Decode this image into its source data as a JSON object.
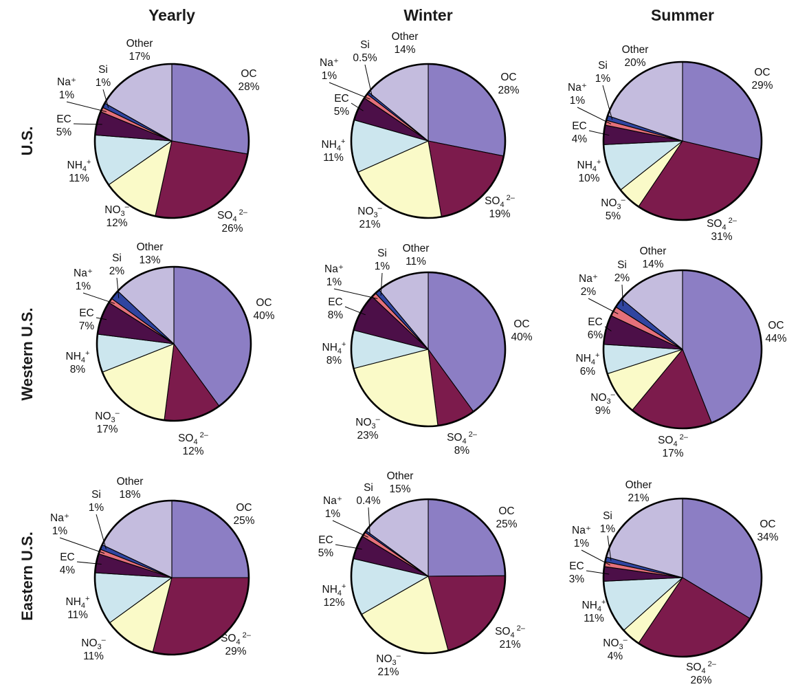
{
  "column_titles": [
    "Yearly",
    "Winter",
    "Summer"
  ],
  "row_titles": [
    "U.S.",
    "Western U.S.",
    "Eastern U.S."
  ],
  "colors": {
    "OC": "#8c7ec4",
    "SO4": "#7c1b4c",
    "NO3": "#fafac8",
    "NH4": "#cce6ee",
    "EC": "#4c0f48",
    "Na": "#e4707a",
    "Si": "#3045a0",
    "Other": "#c4bcde"
  },
  "component_labels": {
    "OC": "OC",
    "SO4": [
      "SO",
      "4",
      " 2–"
    ],
    "NO3": [
      "NO",
      "3",
      "–"
    ],
    "NH4": [
      "NH",
      "4",
      "+"
    ],
    "EC": "EC",
    "Na": "Na⁺",
    "Si": "Si",
    "Other": "Other"
  },
  "chart_data": [
    {
      "type": "pie",
      "row": "U.S.",
      "column": "Yearly",
      "slices": [
        [
          "OC",
          28
        ],
        [
          "SO4",
          26
        ],
        [
          "NO3",
          12
        ],
        [
          "NH4",
          11
        ],
        [
          "EC",
          5
        ],
        [
          "Na",
          1
        ],
        [
          "Si",
          1
        ],
        [
          "Other",
          17
        ]
      ]
    },
    {
      "type": "pie",
      "row": "U.S.",
      "column": "Winter",
      "slices": [
        [
          "OC",
          28
        ],
        [
          "SO4",
          19
        ],
        [
          "NO3",
          21
        ],
        [
          "NH4",
          11
        ],
        [
          "EC",
          5
        ],
        [
          "Na",
          1
        ],
        [
          "Si",
          0.5
        ],
        [
          "Other",
          14
        ]
      ]
    },
    {
      "type": "pie",
      "row": "U.S.",
      "column": "Summer",
      "slices": [
        [
          "OC",
          29
        ],
        [
          "SO4",
          31
        ],
        [
          "NO3",
          5
        ],
        [
          "NH4",
          10
        ],
        [
          "EC",
          4
        ],
        [
          "Na",
          1
        ],
        [
          "Si",
          1
        ],
        [
          "Other",
          20
        ]
      ]
    },
    {
      "type": "pie",
      "row": "Western U.S.",
      "column": "Yearly",
      "slices": [
        [
          "OC",
          40
        ],
        [
          "SO4",
          12
        ],
        [
          "NO3",
          17
        ],
        [
          "NH4",
          8
        ],
        [
          "EC",
          7
        ],
        [
          "Na",
          1
        ],
        [
          "Si",
          2
        ],
        [
          "Other",
          13
        ]
      ]
    },
    {
      "type": "pie",
      "row": "Western U.S.",
      "column": "Winter",
      "slices": [
        [
          "OC",
          40
        ],
        [
          "SO4",
          8
        ],
        [
          "NO3",
          23
        ],
        [
          "NH4",
          8
        ],
        [
          "EC",
          8
        ],
        [
          "Na",
          1
        ],
        [
          "Si",
          1
        ],
        [
          "Other",
          11
        ]
      ]
    },
    {
      "type": "pie",
      "row": "Western U.S.",
      "column": "Summer",
      "slices": [
        [
          "OC",
          44
        ],
        [
          "SO4",
          17
        ],
        [
          "NO3",
          9
        ],
        [
          "NH4",
          6
        ],
        [
          "EC",
          6
        ],
        [
          "Na",
          2
        ],
        [
          "Si",
          2
        ],
        [
          "Other",
          14
        ]
      ]
    },
    {
      "type": "pie",
      "row": "Eastern U.S.",
      "column": "Yearly",
      "slices": [
        [
          "OC",
          25
        ],
        [
          "SO4",
          29
        ],
        [
          "NO3",
          11
        ],
        [
          "NH4",
          11
        ],
        [
          "EC",
          4
        ],
        [
          "Na",
          1
        ],
        [
          "Si",
          1
        ],
        [
          "Other",
          18
        ]
      ]
    },
    {
      "type": "pie",
      "row": "Eastern U.S.",
      "column": "Winter",
      "slices": [
        [
          "OC",
          25
        ],
        [
          "SO4",
          21
        ],
        [
          "NO3",
          21
        ],
        [
          "NH4",
          12
        ],
        [
          "EC",
          5
        ],
        [
          "Na",
          1
        ],
        [
          "Si",
          0.4
        ],
        [
          "Other",
          15
        ]
      ]
    },
    {
      "type": "pie",
      "row": "Eastern U.S.",
      "column": "Summer",
      "slices": [
        [
          "OC",
          34
        ],
        [
          "SO4",
          26
        ],
        [
          "NO3",
          4
        ],
        [
          "NH4",
          11
        ],
        [
          "EC",
          3
        ],
        [
          "Na",
          1
        ],
        [
          "Si",
          1
        ],
        [
          "Other",
          21
        ]
      ]
    }
  ]
}
